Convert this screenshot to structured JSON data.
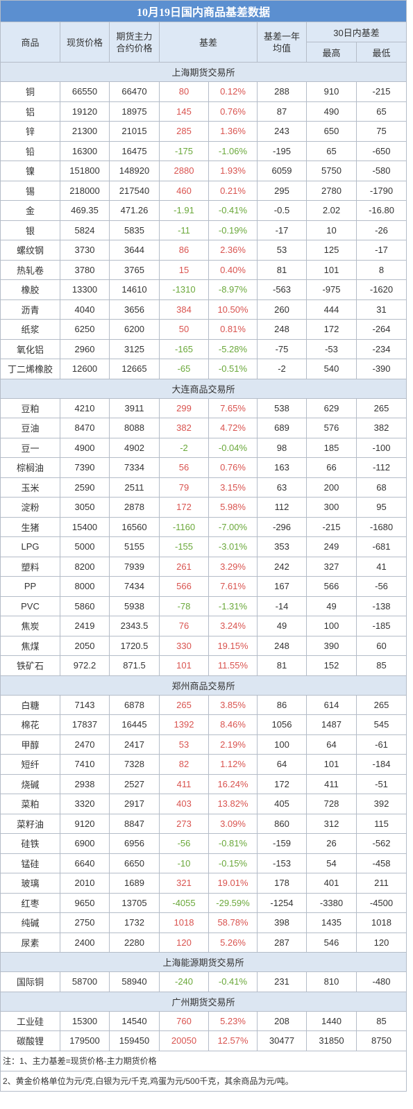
{
  "title": "10月19日国内商品基差数据",
  "header": {
    "columns": [
      "商品",
      "现货价格",
      "期货主力合约价格",
      "基差",
      "基差一年均值"
    ],
    "group": "30日内基差",
    "group_columns": [
      "最高",
      "最低"
    ]
  },
  "sections": [
    {
      "name": "上海期货交易所",
      "rows": [
        [
          "铜",
          "66550",
          "66470",
          "80",
          "0.12%",
          "288",
          "910",
          "-215"
        ],
        [
          "铝",
          "19120",
          "18975",
          "145",
          "0.76%",
          "87",
          "490",
          "65"
        ],
        [
          "锌",
          "21300",
          "21015",
          "285",
          "1.36%",
          "243",
          "650",
          "75"
        ],
        [
          "铅",
          "16300",
          "16475",
          "-175",
          "-1.06%",
          "-195",
          "65",
          "-650"
        ],
        [
          "镍",
          "151800",
          "148920",
          "2880",
          "1.93%",
          "6059",
          "5750",
          "-580"
        ],
        [
          "锡",
          "218000",
          "217540",
          "460",
          "0.21%",
          "295",
          "2780",
          "-1790"
        ],
        [
          "金",
          "469.35",
          "471.26",
          "-1.91",
          "-0.41%",
          "-0.5",
          "2.02",
          "-16.80"
        ],
        [
          "银",
          "5824",
          "5835",
          "-11",
          "-0.19%",
          "-17",
          "10",
          "-26"
        ],
        [
          "螺纹钢",
          "3730",
          "3644",
          "86",
          "2.36%",
          "53",
          "125",
          "-17"
        ],
        [
          "热轧卷",
          "3780",
          "3765",
          "15",
          "0.40%",
          "81",
          "101",
          "8"
        ],
        [
          "橡胶",
          "13300",
          "14610",
          "-1310",
          "-8.97%",
          "-563",
          "-975",
          "-1620"
        ],
        [
          "沥青",
          "4040",
          "3656",
          "384",
          "10.50%",
          "260",
          "444",
          "31"
        ],
        [
          "纸浆",
          "6250",
          "6200",
          "50",
          "0.81%",
          "248",
          "172",
          "-264"
        ],
        [
          "氧化铝",
          "2960",
          "3125",
          "-165",
          "-5.28%",
          "-75",
          "-53",
          "-234"
        ],
        [
          "丁二烯橡胶",
          "12600",
          "12665",
          "-65",
          "-0.51%",
          "-2",
          "540",
          "-390"
        ]
      ]
    },
    {
      "name": "大连商品交易所",
      "rows": [
        [
          "豆粕",
          "4210",
          "3911",
          "299",
          "7.65%",
          "538",
          "629",
          "265"
        ],
        [
          "豆油",
          "8470",
          "8088",
          "382",
          "4.72%",
          "689",
          "576",
          "382"
        ],
        [
          "豆一",
          "4900",
          "4902",
          "-2",
          "-0.04%",
          "98",
          "185",
          "-100"
        ],
        [
          "棕榈油",
          "7390",
          "7334",
          "56",
          "0.76%",
          "163",
          "66",
          "-112"
        ],
        [
          "玉米",
          "2590",
          "2511",
          "79",
          "3.15%",
          "63",
          "200",
          "68"
        ],
        [
          "淀粉",
          "3050",
          "2878",
          "172",
          "5.98%",
          "112",
          "300",
          "95"
        ],
        [
          "生猪",
          "15400",
          "16560",
          "-1160",
          "-7.00%",
          "-296",
          "-215",
          "-1680"
        ],
        [
          "LPG",
          "5000",
          "5155",
          "-155",
          "-3.01%",
          "353",
          "249",
          "-681"
        ],
        [
          "塑料",
          "8200",
          "7939",
          "261",
          "3.29%",
          "242",
          "327",
          "41"
        ],
        [
          "PP",
          "8000",
          "7434",
          "566",
          "7.61%",
          "167",
          "566",
          "-56"
        ],
        [
          "PVC",
          "5860",
          "5938",
          "-78",
          "-1.31%",
          "-14",
          "49",
          "-138"
        ],
        [
          "焦炭",
          "2419",
          "2343.5",
          "76",
          "3.24%",
          "49",
          "100",
          "-185"
        ],
        [
          "焦煤",
          "2050",
          "1720.5",
          "330",
          "19.15%",
          "248",
          "390",
          "60"
        ],
        [
          "铁矿石",
          "972.2",
          "871.5",
          "101",
          "11.55%",
          "81",
          "152",
          "85"
        ]
      ]
    },
    {
      "name": "郑州商品交易所",
      "rows": [
        [
          "白糖",
          "7143",
          "6878",
          "265",
          "3.85%",
          "86",
          "614",
          "265"
        ],
        [
          "棉花",
          "17837",
          "16445",
          "1392",
          "8.46%",
          "1056",
          "1487",
          "545"
        ],
        [
          "甲醇",
          "2470",
          "2417",
          "53",
          "2.19%",
          "100",
          "64",
          "-61"
        ],
        [
          "短纤",
          "7410",
          "7328",
          "82",
          "1.12%",
          "64",
          "101",
          "-184"
        ],
        [
          "烧碱",
          "2938",
          "2527",
          "411",
          "16.24%",
          "172",
          "411",
          "-51"
        ],
        [
          "菜粕",
          "3320",
          "2917",
          "403",
          "13.82%",
          "405",
          "728",
          "392"
        ],
        [
          "菜籽油",
          "9120",
          "8847",
          "273",
          "3.09%",
          "860",
          "312",
          "115"
        ],
        [
          "硅铁",
          "6900",
          "6956",
          "-56",
          "-0.81%",
          "-159",
          "26",
          "-562"
        ],
        [
          "锰硅",
          "6640",
          "6650",
          "-10",
          "-0.15%",
          "-153",
          "54",
          "-458"
        ],
        [
          "玻璃",
          "2010",
          "1689",
          "321",
          "19.01%",
          "178",
          "401",
          "211"
        ],
        [
          "红枣",
          "9650",
          "13705",
          "-4055",
          "-29.59%",
          "-1254",
          "-3380",
          "-4500"
        ],
        [
          "纯碱",
          "2750",
          "1732",
          "1018",
          "58.78%",
          "398",
          "1435",
          "1018"
        ],
        [
          "尿素",
          "2400",
          "2280",
          "120",
          "5.26%",
          "287",
          "546",
          "120"
        ]
      ]
    },
    {
      "name": "上海能源期货交易所",
      "rows": [
        [
          "国际铜",
          "58700",
          "58940",
          "-240",
          "-0.41%",
          "231",
          "810",
          "-480"
        ]
      ]
    },
    {
      "name": "广州期货交易所",
      "rows": [
        [
          "工业硅",
          "15300",
          "14540",
          "760",
          "5.23%",
          "208",
          "1440",
          "85"
        ],
        [
          "碳酸锂",
          "179500",
          "159450",
          "20050",
          "12.57%",
          "30477",
          "31850",
          "8750"
        ]
      ]
    }
  ],
  "notes": [
    "注：1、主力基差=现货价格-主力期货价格",
    "2、黄金价格单位为元/克,白银为元/千克,鸡蛋为元/500千克，其余商品为元/吨。"
  ]
}
